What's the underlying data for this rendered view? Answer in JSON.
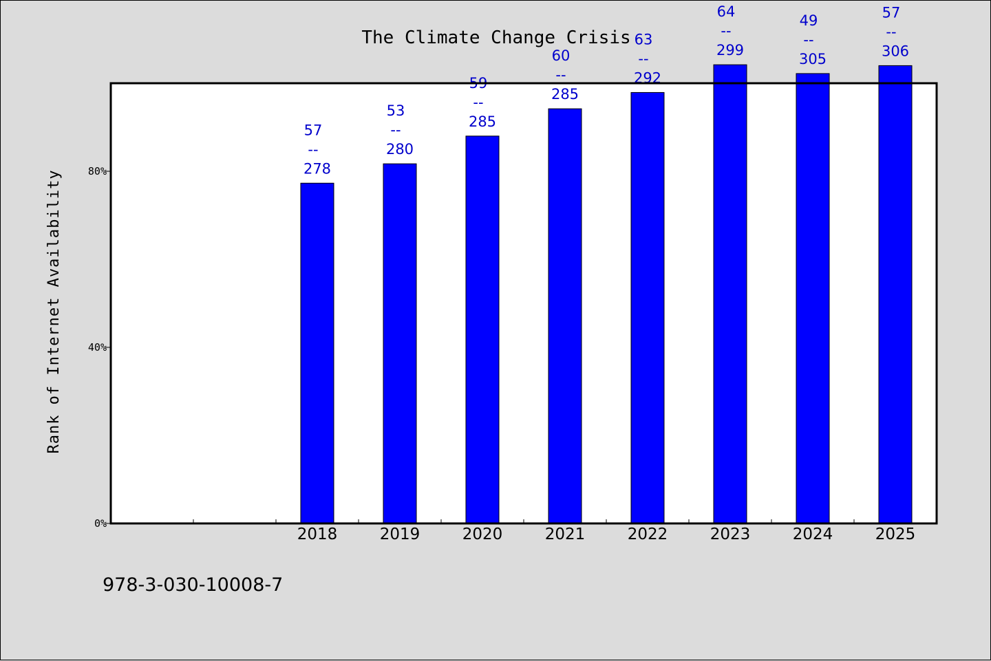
{
  "chart_data": {
    "type": "bar",
    "title": "The Climate Change Crisis",
    "xlabel": "",
    "ylabel": "Rank of Internet Availability",
    "categories": [
      "2018",
      "2019",
      "2020",
      "2021",
      "2022",
      "2023",
      "2024",
      "2025"
    ],
    "values": [
      77.3,
      81.7,
      88.0,
      94.2,
      97.9,
      104.2,
      102.2,
      104.0
    ],
    "data_labels": [
      {
        "top": "57",
        "sep": "--",
        "bottom": "278"
      },
      {
        "top": "53",
        "sep": "--",
        "bottom": "280"
      },
      {
        "top": "59",
        "sep": "--",
        "bottom": "285"
      },
      {
        "top": "60",
        "sep": "--",
        "bottom": "285"
      },
      {
        "top": "63",
        "sep": "--",
        "bottom": "292"
      },
      {
        "top": "64",
        "sep": "--",
        "bottom": "299"
      },
      {
        "top": "49",
        "sep": "--",
        "bottom": "305"
      },
      {
        "top": "57",
        "sep": "--",
        "bottom": "306"
      }
    ],
    "yticks": [
      {
        "value": 0,
        "label": "0%"
      },
      {
        "value": 40,
        "label": "40%"
      },
      {
        "value": 80,
        "label": "80%"
      }
    ],
    "ylim": [
      0,
      100
    ],
    "xlim_slots": 10,
    "first_category_slot": 2,
    "grid": false,
    "bar_color": "#0000ff",
    "label_color": "#0000cc"
  },
  "footer_text": "978-3-030-10008-7"
}
